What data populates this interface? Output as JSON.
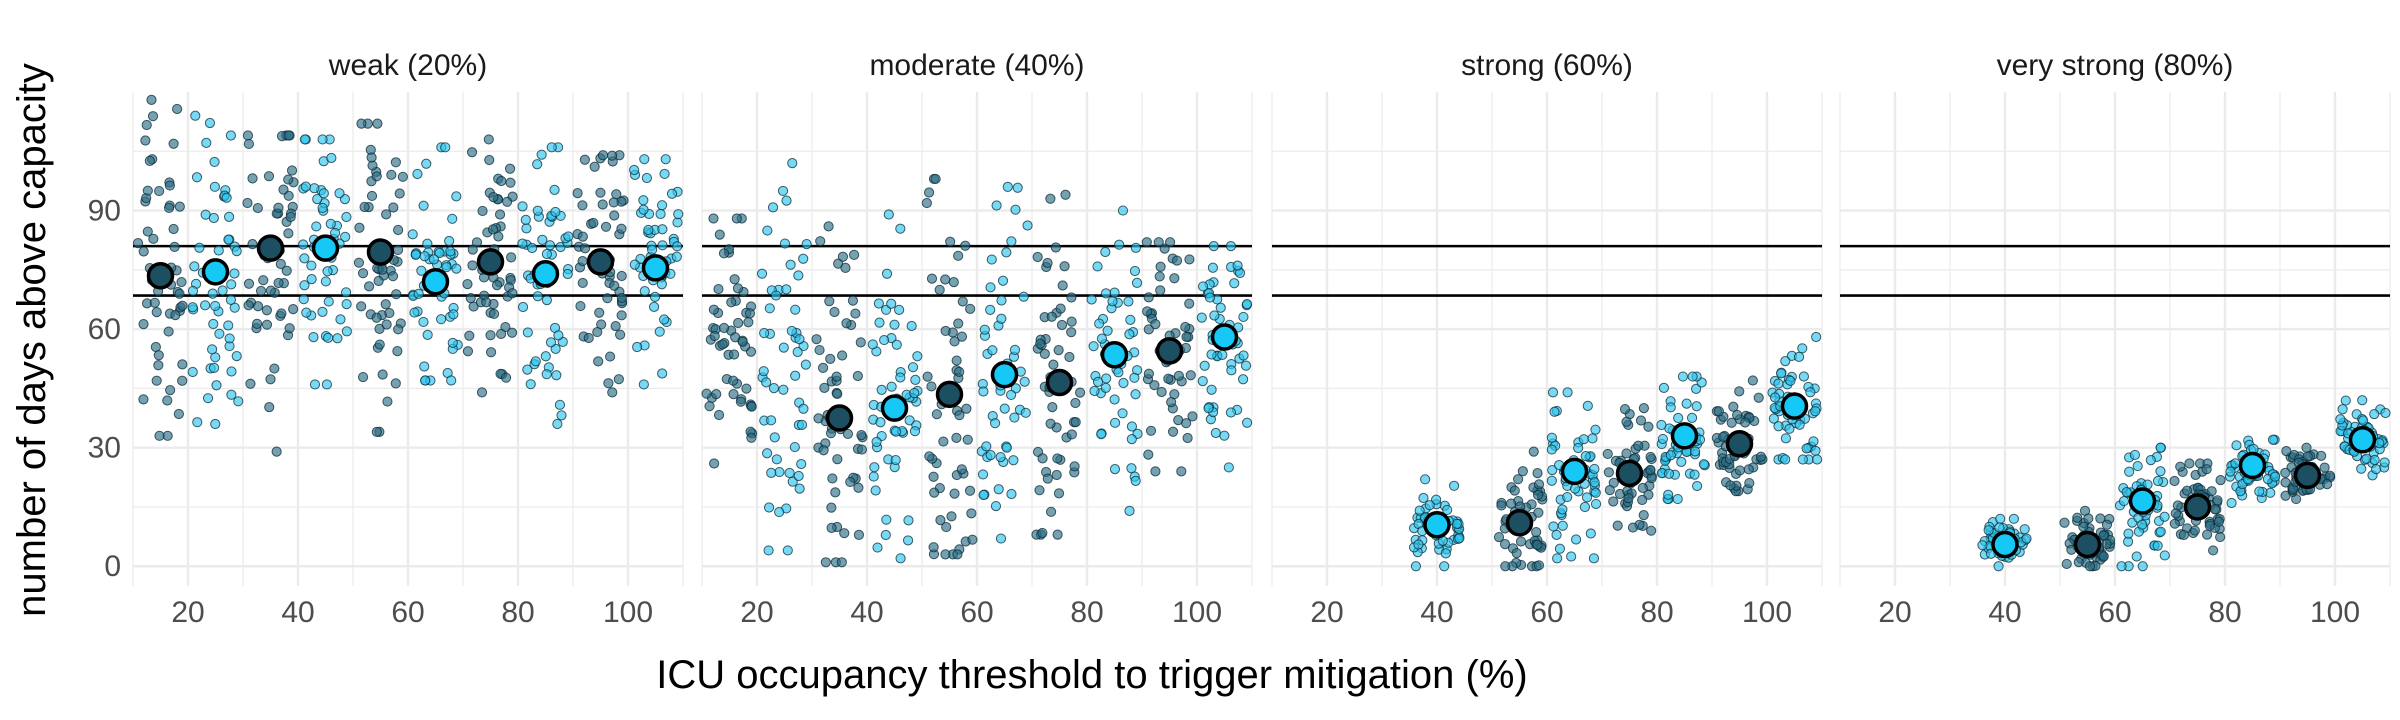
{
  "chart_data": {
    "type": "scatter",
    "xlabel": "ICU occupancy threshold to trigger mitigation (%)",
    "ylabel": "number of days above capacity",
    "x_ticks": [
      20,
      40,
      60,
      80,
      100
    ],
    "y_ticks": [
      0,
      30,
      60,
      90
    ],
    "xlim": [
      10,
      110
    ],
    "ylim": [
      -5,
      120
    ],
    "reference_lines_y": [
      68.5,
      81
    ],
    "grid": true,
    "colors": {
      "dark": "#2d6e86",
      "light": "#2ec4ee",
      "mean_dark": "#1d4f63",
      "mean_light": "#15c8f5",
      "reference_line": "#000000",
      "grid": "#ebebeb"
    },
    "panels": [
      {
        "title": "weak (20%)",
        "groups": [
          {
            "x": 15,
            "mean": 73.5,
            "low": 33,
            "high": 118,
            "shade": "dark"
          },
          {
            "x": 25,
            "mean": 74.5,
            "low": 36,
            "high": 114,
            "shade": "light"
          },
          {
            "x": 35,
            "mean": 80.5,
            "low": 29,
            "high": 109,
            "shade": "dark"
          },
          {
            "x": 45,
            "mean": 80.5,
            "low": 46,
            "high": 108,
            "shade": "light"
          },
          {
            "x": 55,
            "mean": 79.5,
            "low": 34,
            "high": 112,
            "shade": "dark"
          },
          {
            "x": 65,
            "mean": 72,
            "low": 47,
            "high": 106,
            "shade": "light"
          },
          {
            "x": 75,
            "mean": 77,
            "low": 44,
            "high": 108,
            "shade": "dark"
          },
          {
            "x": 85,
            "mean": 74,
            "low": 36,
            "high": 106,
            "shade": "light"
          },
          {
            "x": 95,
            "mean": 77,
            "low": 44,
            "high": 104,
            "shade": "dark"
          },
          {
            "x": 105,
            "mean": 75.5,
            "low": 46,
            "high": 103,
            "shade": "light"
          }
        ]
      },
      {
        "title": "moderate (40%)",
        "groups": [
          {
            "x": 15,
            "mean": null,
            "low": 26,
            "high": 88,
            "shade": "dark"
          },
          {
            "x": 25,
            "mean": null,
            "low": 4,
            "high": 102,
            "shade": "light"
          },
          {
            "x": 35,
            "mean": 37.5,
            "low": 1,
            "high": 86,
            "shade": "dark"
          },
          {
            "x": 45,
            "mean": 40,
            "low": 2,
            "high": 89,
            "shade": "light"
          },
          {
            "x": 55,
            "mean": 43.5,
            "low": 3,
            "high": 98,
            "shade": "dark"
          },
          {
            "x": 65,
            "mean": 48.5,
            "low": 7,
            "high": 96,
            "shade": "light"
          },
          {
            "x": 75,
            "mean": 46.5,
            "low": 8,
            "high": 94,
            "shade": "dark"
          },
          {
            "x": 85,
            "mean": 53.5,
            "low": 14,
            "high": 90,
            "shade": "light"
          },
          {
            "x": 95,
            "mean": 54.5,
            "low": 24,
            "high": 82,
            "shade": "dark"
          },
          {
            "x": 105,
            "mean": 58,
            "low": 25,
            "high": 81,
            "shade": "light"
          }
        ]
      },
      {
        "title": "strong (60%)",
        "groups": [
          {
            "x": 40,
            "mean": 10.5,
            "low": 0,
            "high": 22,
            "shade": "light"
          },
          {
            "x": 55,
            "mean": 11,
            "low": 0,
            "high": 29,
            "shade": "dark"
          },
          {
            "x": 65,
            "mean": 24,
            "low": 2,
            "high": 44,
            "shade": "light"
          },
          {
            "x": 75,
            "mean": 23.5,
            "low": 9,
            "high": 40,
            "shade": "dark"
          },
          {
            "x": 85,
            "mean": 33,
            "low": 17,
            "high": 48,
            "shade": "light"
          },
          {
            "x": 95,
            "mean": 31,
            "low": 19,
            "high": 47,
            "shade": "dark"
          },
          {
            "x": 105,
            "mean": 40.5,
            "low": 27,
            "high": 58,
            "shade": "light"
          }
        ]
      },
      {
        "title": "very strong (80%)",
        "groups": [
          {
            "x": 40,
            "mean": 5.5,
            "low": 0,
            "high": 12,
            "shade": "light"
          },
          {
            "x": 55,
            "mean": 5.5,
            "low": 0,
            "high": 14,
            "shade": "dark"
          },
          {
            "x": 65,
            "mean": 16.5,
            "low": 0,
            "high": 30,
            "shade": "light"
          },
          {
            "x": 75,
            "mean": 15,
            "low": 4,
            "high": 26,
            "shade": "dark"
          },
          {
            "x": 85,
            "mean": 25.5,
            "low": 16,
            "high": 32,
            "shade": "light"
          },
          {
            "x": 95,
            "mean": 23,
            "low": 17,
            "high": 30,
            "shade": "dark"
          },
          {
            "x": 105,
            "mean": 32,
            "low": 23,
            "high": 42,
            "shade": "light"
          }
        ]
      }
    ]
  }
}
